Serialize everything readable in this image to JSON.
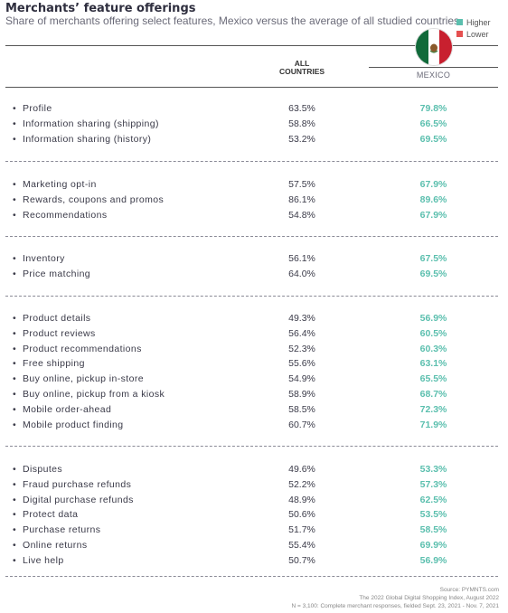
{
  "header": {
    "title": "Merchants’ feature offerings",
    "subtitle": "Share of merchants offering select features, Mexico versus the average of all studied countries"
  },
  "legend": [
    {
      "label": "Higher",
      "color": "#5bbfae"
    },
    {
      "label": "Lower",
      "color": "#e55050"
    }
  ],
  "columns": {
    "all_line1": "ALL",
    "all_line2": "COUNTRIES",
    "mexico": "MEXICO"
  },
  "colors": {
    "higher": "#5bbfae",
    "lower": "#e55050"
  },
  "chart_data": {
    "type": "table",
    "columns": [
      "ALL COUNTRIES",
      "MEXICO"
    ],
    "groups": [
      {
        "rows": [
          {
            "label": "Profile",
            "all": "63.5%",
            "mexico": "79.8%",
            "mexico_status": "higher"
          },
          {
            "label": "Information sharing (shipping)",
            "all": "58.8%",
            "mexico": "66.5%",
            "mexico_status": "higher"
          },
          {
            "label": "Information sharing (history)",
            "all": "53.2%",
            "mexico": "69.5%",
            "mexico_status": "higher"
          }
        ]
      },
      {
        "rows": [
          {
            "label": "Marketing opt-in",
            "all": "57.5%",
            "mexico": "67.9%",
            "mexico_status": "higher"
          },
          {
            "label": "Rewards, coupons and promos",
            "all": "86.1%",
            "mexico": "89.6%",
            "mexico_status": "higher"
          },
          {
            "label": "Recommendations",
            "all": "54.8%",
            "mexico": "67.9%",
            "mexico_status": "higher"
          }
        ]
      },
      {
        "rows": [
          {
            "label": "Inventory",
            "all": "56.1%",
            "mexico": "67.5%",
            "mexico_status": "higher"
          },
          {
            "label": "Price matching",
            "all": "64.0%",
            "mexico": "69.5%",
            "mexico_status": "higher"
          }
        ]
      },
      {
        "rows": [
          {
            "label": "Product details",
            "all": "49.3%",
            "mexico": "56.9%",
            "mexico_status": "higher"
          },
          {
            "label": "Product reviews",
            "all": "56.4%",
            "mexico": "60.5%",
            "mexico_status": "higher"
          },
          {
            "label": "Product recommendations",
            "all": "52.3%",
            "mexico": "60.3%",
            "mexico_status": "higher"
          },
          {
            "label": "Free shipping",
            "all": "55.6%",
            "mexico": "63.1%",
            "mexico_status": "higher"
          },
          {
            "label": "Buy online, pickup in-store",
            "all": "54.9%",
            "mexico": "65.5%",
            "mexico_status": "higher"
          },
          {
            "label": "Buy online, pickup from a kiosk",
            "all": "58.9%",
            "mexico": "68.7%",
            "mexico_status": "higher"
          },
          {
            "label": "Mobile order-ahead",
            "all": "58.5%",
            "mexico": "72.3%",
            "mexico_status": "higher"
          },
          {
            "label": "Mobile product finding",
            "all": "60.7%",
            "mexico": "71.9%",
            "mexico_status": "higher"
          }
        ]
      },
      {
        "rows": [
          {
            "label": "Disputes",
            "all": "49.6%",
            "mexico": "53.3%",
            "mexico_status": "higher"
          },
          {
            "label": "Fraud purchase refunds",
            "all": "52.2%",
            "mexico": "57.3%",
            "mexico_status": "higher"
          },
          {
            "label": "Digital purchase refunds",
            "all": "48.9%",
            "mexico": "62.5%",
            "mexico_status": "higher"
          },
          {
            "label": "Protect data",
            "all": "50.6%",
            "mexico": "53.5%",
            "mexico_status": "higher"
          },
          {
            "label": "Purchase returns",
            "all": "51.7%",
            "mexico": "58.5%",
            "mexico_status": "higher"
          },
          {
            "label": "Online returns",
            "all": "55.4%",
            "mexico": "69.9%",
            "mexico_status": "higher"
          },
          {
            "label": "Live help",
            "all": "50.7%",
            "mexico": "56.9%",
            "mexico_status": "higher"
          }
        ]
      }
    ]
  },
  "source": {
    "line1": "Source: PYMNTS.com",
    "line2": "The 2022 Global Digital Shopping Index, August 2022",
    "line3": "N = 3,100: Complete merchant responses, fielded Sept. 23, 2021 - Nov. 7, 2021"
  }
}
